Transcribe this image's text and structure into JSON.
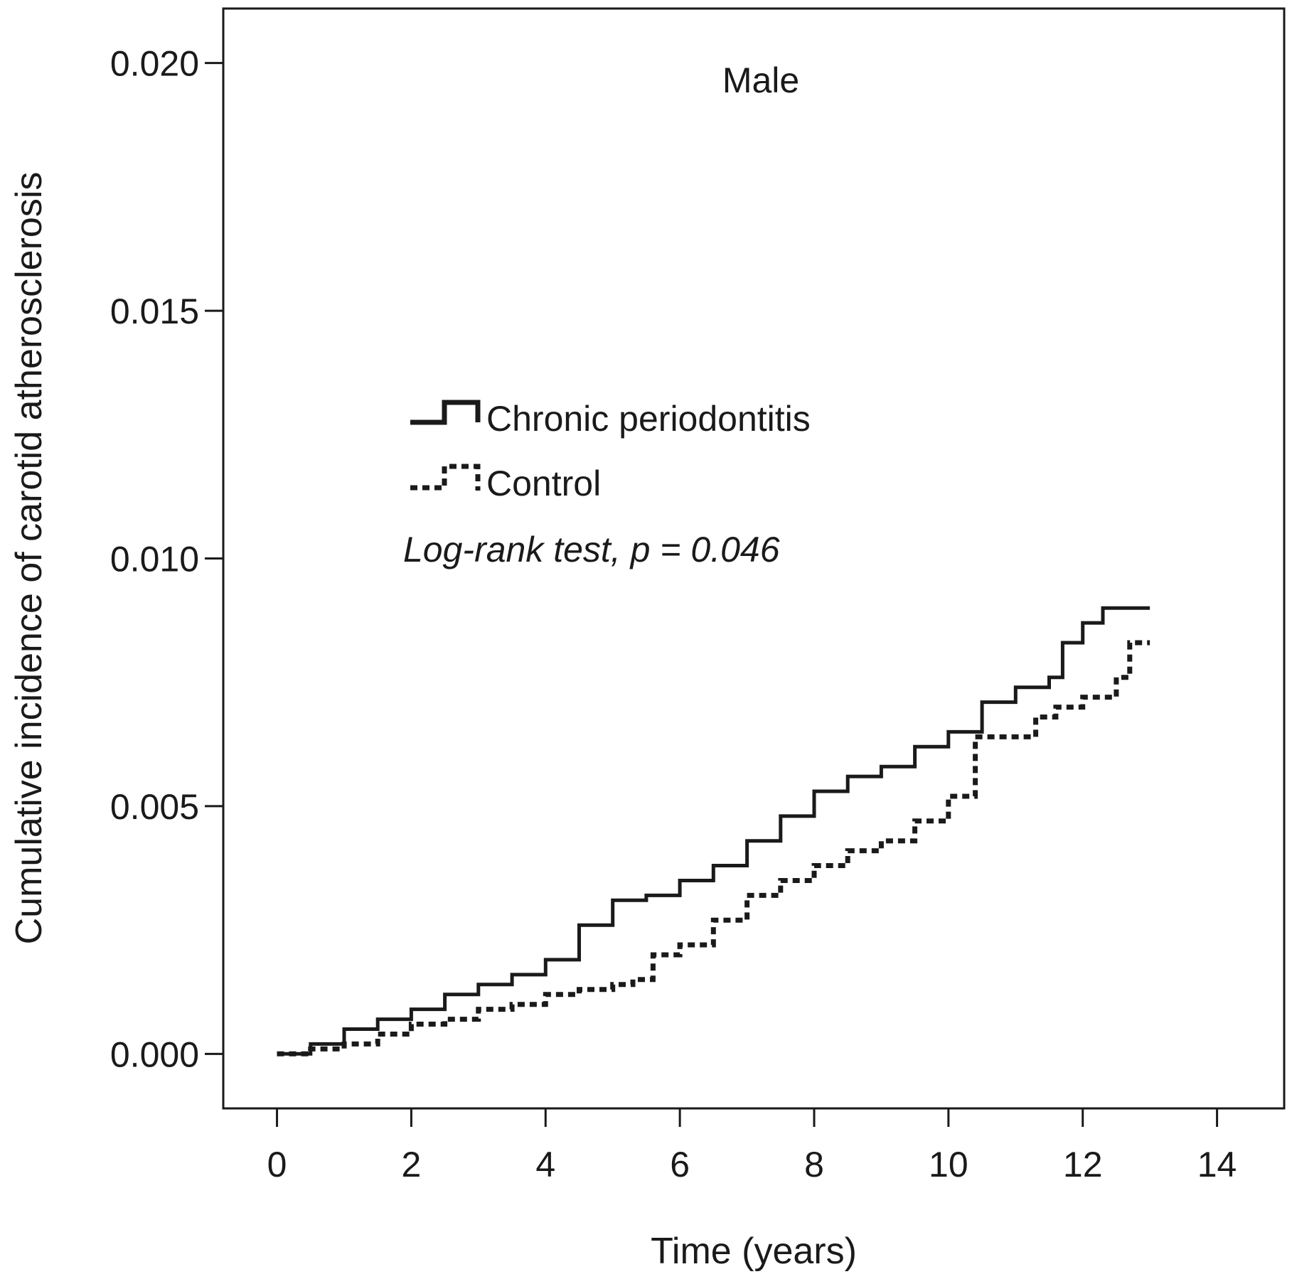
{
  "chart_data": {
    "type": "line",
    "subtype": "step",
    "title": "Male",
    "xlabel": "Time (years)",
    "ylabel": "Cumulative incidence of carotid atherosclerosis",
    "xlim": [
      -0.8,
      15
    ],
    "ylim": [
      -0.0011,
      0.0211
    ],
    "x_ticks": [
      0,
      2,
      4,
      6,
      8,
      10,
      12,
      14
    ],
    "x_tick_labels": [
      "0",
      "2",
      "4",
      "6",
      "8",
      "10",
      "12",
      "14"
    ],
    "y_ticks": [
      0.0,
      0.005,
      0.01,
      0.015,
      0.02
    ],
    "y_tick_labels": [
      "0.000",
      "0.005",
      "0.010",
      "0.015",
      "0.020"
    ],
    "grid": false,
    "legend": {
      "location": "upper-left",
      "entries": [
        {
          "label": "Chronic periodontitis",
          "style": "solid"
        },
        {
          "label": "Control",
          "style": "dotted"
        }
      ]
    },
    "annotation": "Log-rank test, p = 0.046",
    "series": [
      {
        "name": "Chronic periodontitis",
        "style": "solid",
        "x": [
          0,
          0.5,
          1,
          1.5,
          2,
          2.5,
          3,
          3.5,
          4,
          4.5,
          5,
          5.5,
          6,
          6.5,
          7,
          7.5,
          8,
          8.5,
          9,
          9.5,
          10,
          10.5,
          11,
          11.5,
          11.7,
          12,
          12.3,
          13
        ],
        "values": [
          0.0,
          0.0002,
          0.0005,
          0.0007,
          0.0009,
          0.0012,
          0.0014,
          0.0016,
          0.0019,
          0.0026,
          0.0031,
          0.0032,
          0.0035,
          0.0038,
          0.0043,
          0.0048,
          0.0053,
          0.0056,
          0.0058,
          0.0062,
          0.0065,
          0.0071,
          0.0074,
          0.0076,
          0.0083,
          0.0087,
          0.009,
          0.009
        ]
      },
      {
        "name": "Control",
        "style": "dotted",
        "x": [
          0,
          0.5,
          1,
          1.5,
          2,
          2.5,
          3,
          3.5,
          4,
          4.5,
          5,
          5.3,
          5.6,
          6,
          6.5,
          7,
          7.5,
          8,
          8.5,
          9,
          9.5,
          10,
          10.4,
          11,
          11.3,
          11.6,
          12,
          12.5,
          12.7,
          13
        ],
        "values": [
          0.0,
          0.0001,
          0.0002,
          0.0004,
          0.0006,
          0.0007,
          0.0009,
          0.001,
          0.0012,
          0.0013,
          0.0014,
          0.0015,
          0.002,
          0.0022,
          0.0027,
          0.0032,
          0.0035,
          0.0038,
          0.0041,
          0.0043,
          0.0047,
          0.0052,
          0.0064,
          0.0064,
          0.0068,
          0.007,
          0.0072,
          0.0076,
          0.0083,
          0.0083
        ]
      }
    ]
  }
}
